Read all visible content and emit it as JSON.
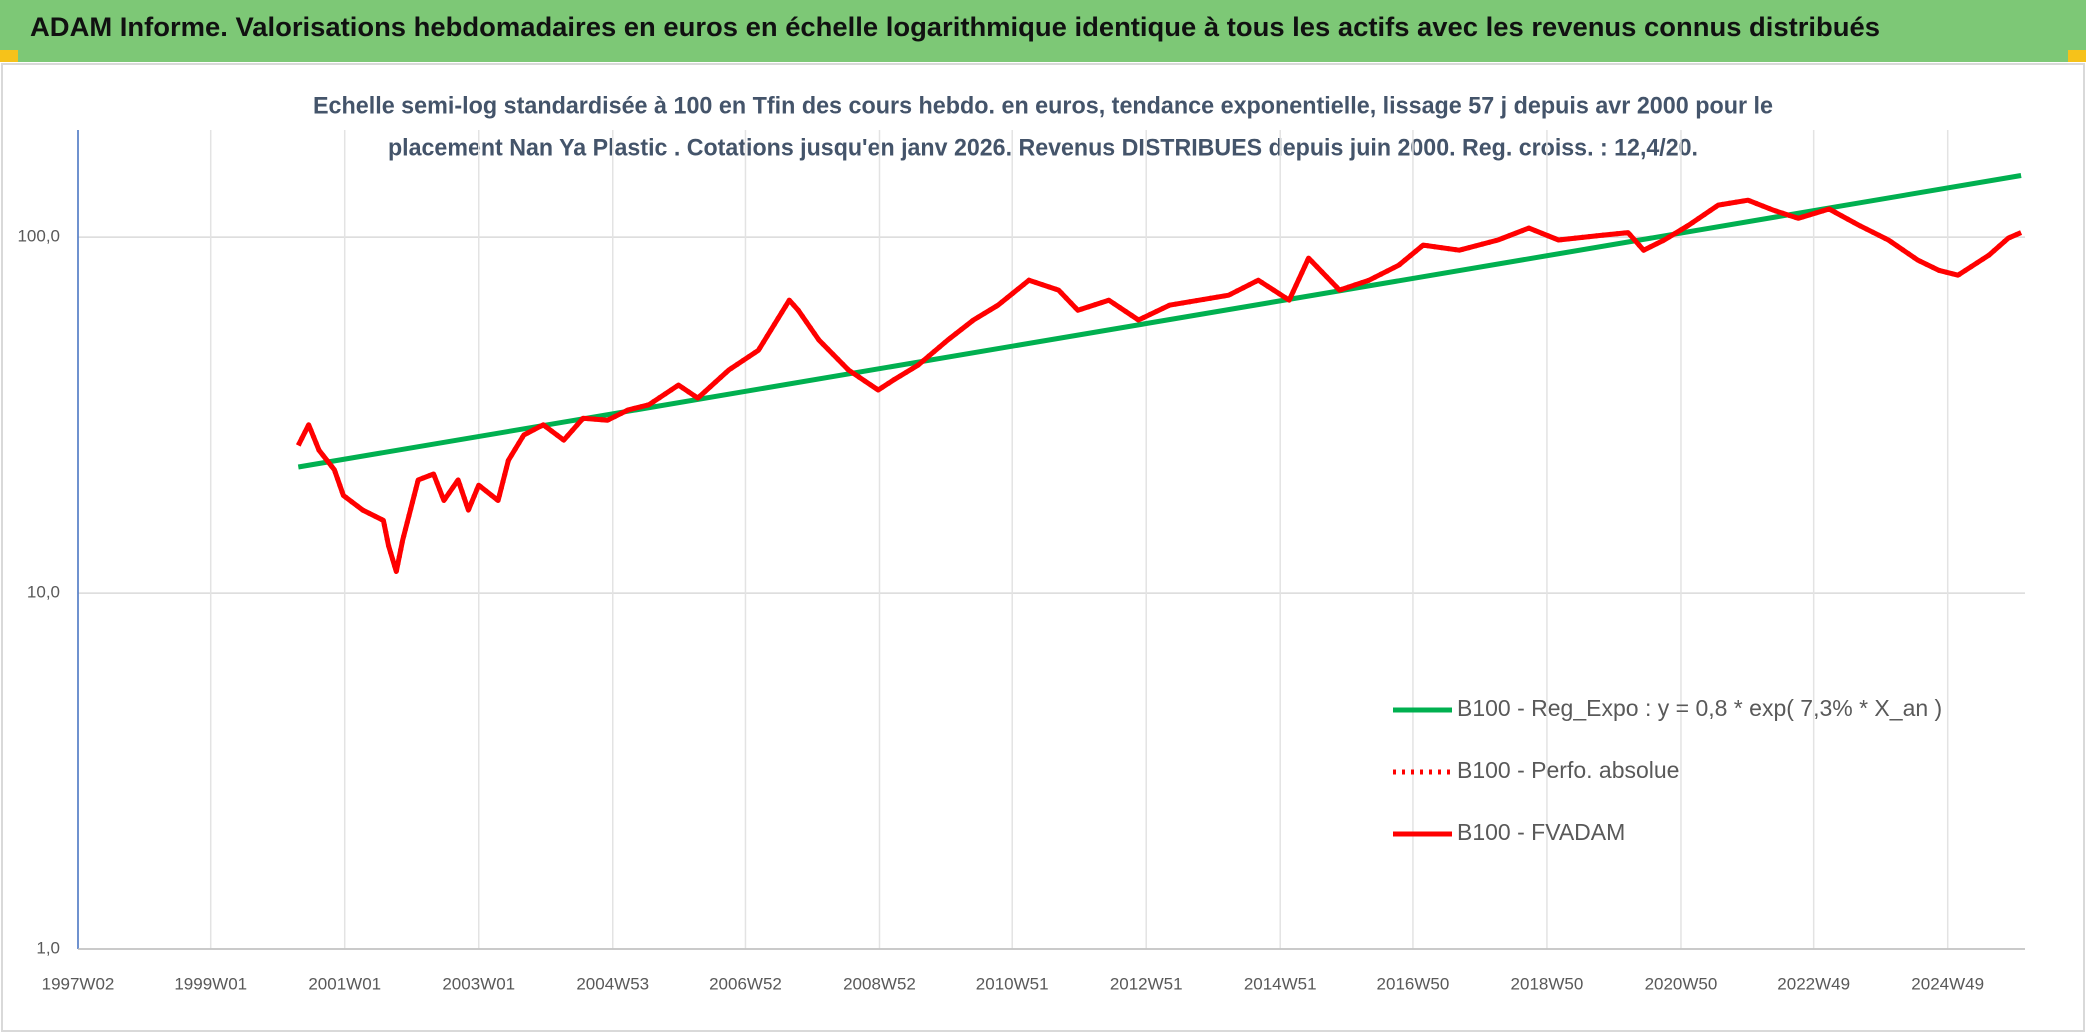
{
  "chart_data": {
    "type": "line",
    "title": "ADAM Informe. Valorisations hebdomadaires en euros en échelle logarithmique identique à tous les actifs avec les revenus connus distribués",
    "subtitle": [
      "Echelle semi-log standardisée à 100 en Tfin des cours hebdo. en euros, tendance exponentielle, lissage 57 j depuis avr 2000 pour le",
      "placement Nan Ya Plastic . Cotations jusqu'en janv 2026. Revenus DISTRIBUES depuis juin 2000. Reg. croiss. : 12,4/20."
    ],
    "log_y": true,
    "grid": true,
    "legend": "lower right",
    "xlim": [
      "1997W02",
      "2026W05"
    ],
    "xticks": [
      "1997W02",
      "1999W01",
      "2001W01",
      "2003W01",
      "2004W53",
      "2006W52",
      "2008W52",
      "2010W51",
      "2012W51",
      "2014W51",
      "2016W50",
      "2018W50",
      "2020W50",
      "2022W49",
      "2024W49"
    ],
    "ylim": [
      1,
      200
    ],
    "yticks": [
      {
        "value": 1,
        "label": "1,0"
      },
      {
        "value": 10,
        "label": "10,0"
      },
      {
        "value": 100,
        "label": "100,0"
      }
    ],
    "series": [
      {
        "name": "B100 - Reg_Expo : y = 0,8 * exp( 7,3% *  X_an )",
        "color": "#00b050",
        "style": "solid",
        "x": [
          "2000W17",
          "2026W02"
        ],
        "values": [
          22.6,
          149
        ]
      },
      {
        "name": "B100 - Perfo. absolue",
        "color": "#ff0000",
        "style": "dotted",
        "x": [
          "2000W17",
          "2000W25",
          "2000W33",
          "2000W45",
          "2000W52",
          "2001W15",
          "2001W31",
          "2001W35",
          "2001W41",
          "2001W46",
          "2002W06",
          "2002W18",
          "2002W26",
          "2002W37",
          "2002W45",
          "2003W01",
          "2003W16",
          "2003W24",
          "2003W36",
          "2003W51",
          "2004W15",
          "2004W30",
          "2004W49",
          "2005W13",
          "2005W29",
          "2005W52",
          "2006W15",
          "2006W39",
          "2007W10",
          "2007W34",
          "2007W41",
          "2008W05",
          "2008W28",
          "2008W51",
          "2009W11",
          "2009W30",
          "2010W01",
          "2010W21",
          "2010W40",
          "2011W12",
          "2011W35",
          "2011W50",
          "2012W22",
          "2012W45",
          "2013W17",
          "2013W40",
          "2014W11",
          "2014W34",
          "2015W06",
          "2015W21",
          "2015W45",
          "2016W16",
          "2016W39",
          "2017W06",
          "2017W34",
          "2018W12",
          "2018W36",
          "2019W07",
          "2019W38",
          "2020W09",
          "2020W21",
          "2020W37",
          "2021W04",
          "2021W27",
          "2021W50",
          "2022W18",
          "2022W37",
          "2023W09",
          "2023W32",
          "2024W03",
          "2024W26",
          "2024W42",
          "2025W05",
          "2025W29",
          "2025W44",
          "2026W02"
        ],
        "values": [
          26.0,
          29.7,
          25.2,
          22.2,
          18.8,
          17.1,
          16.0,
          13.6,
          11.5,
          14.1,
          20.8,
          21.6,
          18.2,
          20.8,
          17.1,
          20.1,
          18.2,
          23.6,
          27.8,
          29.7,
          26.9,
          31.0,
          30.6,
          32.7,
          33.8,
          38.4,
          35.3,
          42.3,
          48.1,
          66.5,
          62.3,
          51.4,
          42.3,
          37.2,
          39.7,
          43.7,
          51.4,
          58.5,
          64.4,
          75.7,
          71.0,
          62.3,
          66.5,
          58.5,
          64.4,
          66.5,
          68.7,
          75.7,
          66.5,
          87.3,
          71.0,
          75.7,
          83.4,
          95.0,
          91.9,
          98.2,
          106,
          98.2,
          101,
          103,
          91.9,
          98.2,
          108,
          123,
          127,
          119,
          113,
          120,
          108,
          98.2,
          86.1,
          80.7,
          78.2,
          89.0,
          99.3,
          103
        ]
      },
      {
        "name": "B100 - FVADAM",
        "color": "#ff0000",
        "style": "solid",
        "x": [
          "2000W17",
          "2000W25",
          "2000W33",
          "2000W45",
          "2000W52",
          "2001W15",
          "2001W31",
          "2001W35",
          "2001W41",
          "2001W46",
          "2002W06",
          "2002W18",
          "2002W26",
          "2002W37",
          "2002W45",
          "2003W01",
          "2003W16",
          "2003W24",
          "2003W36",
          "2003W51",
          "2004W15",
          "2004W30",
          "2004W49",
          "2005W13",
          "2005W29",
          "2005W52",
          "2006W15",
          "2006W39",
          "2007W10",
          "2007W34",
          "2007W41",
          "2008W05",
          "2008W28",
          "2008W51",
          "2009W11",
          "2009W30",
          "2010W01",
          "2010W21",
          "2010W40",
          "2011W12",
          "2011W35",
          "2011W50",
          "2012W22",
          "2012W45",
          "2013W17",
          "2013W40",
          "2014W11",
          "2014W34",
          "2015W06",
          "2015W21",
          "2015W45",
          "2016W16",
          "2016W39",
          "2017W06",
          "2017W34",
          "2018W12",
          "2018W36",
          "2019W07",
          "2019W38",
          "2020W09",
          "2020W21",
          "2020W37",
          "2021W04",
          "2021W27",
          "2021W50",
          "2022W18",
          "2022W37",
          "2023W09",
          "2023W32",
          "2024W03",
          "2024W26",
          "2024W42",
          "2025W05",
          "2025W29",
          "2025W44",
          "2026W02"
        ],
        "values": [
          26.0,
          29.7,
          25.2,
          22.2,
          18.8,
          17.1,
          16.0,
          13.6,
          11.5,
          14.1,
          20.8,
          21.6,
          18.2,
          20.8,
          17.1,
          20.1,
          18.2,
          23.6,
          27.8,
          29.7,
          26.9,
          31.0,
          30.6,
          32.7,
          33.8,
          38.4,
          35.3,
          42.3,
          48.1,
          66.5,
          62.3,
          51.4,
          42.3,
          37.2,
          39.7,
          43.7,
          51.4,
          58.5,
          64.4,
          75.7,
          71.0,
          62.3,
          66.5,
          58.5,
          64.4,
          66.5,
          68.7,
          75.7,
          66.5,
          87.3,
          71.0,
          75.7,
          83.4,
          95.0,
          91.9,
          98.2,
          106,
          98.2,
          101,
          103,
          91.9,
          98.2,
          108,
          123,
          127,
          119,
          113,
          120,
          108,
          98.2,
          86.1,
          80.7,
          78.2,
          89.0,
          99.3,
          103
        ]
      }
    ]
  }
}
